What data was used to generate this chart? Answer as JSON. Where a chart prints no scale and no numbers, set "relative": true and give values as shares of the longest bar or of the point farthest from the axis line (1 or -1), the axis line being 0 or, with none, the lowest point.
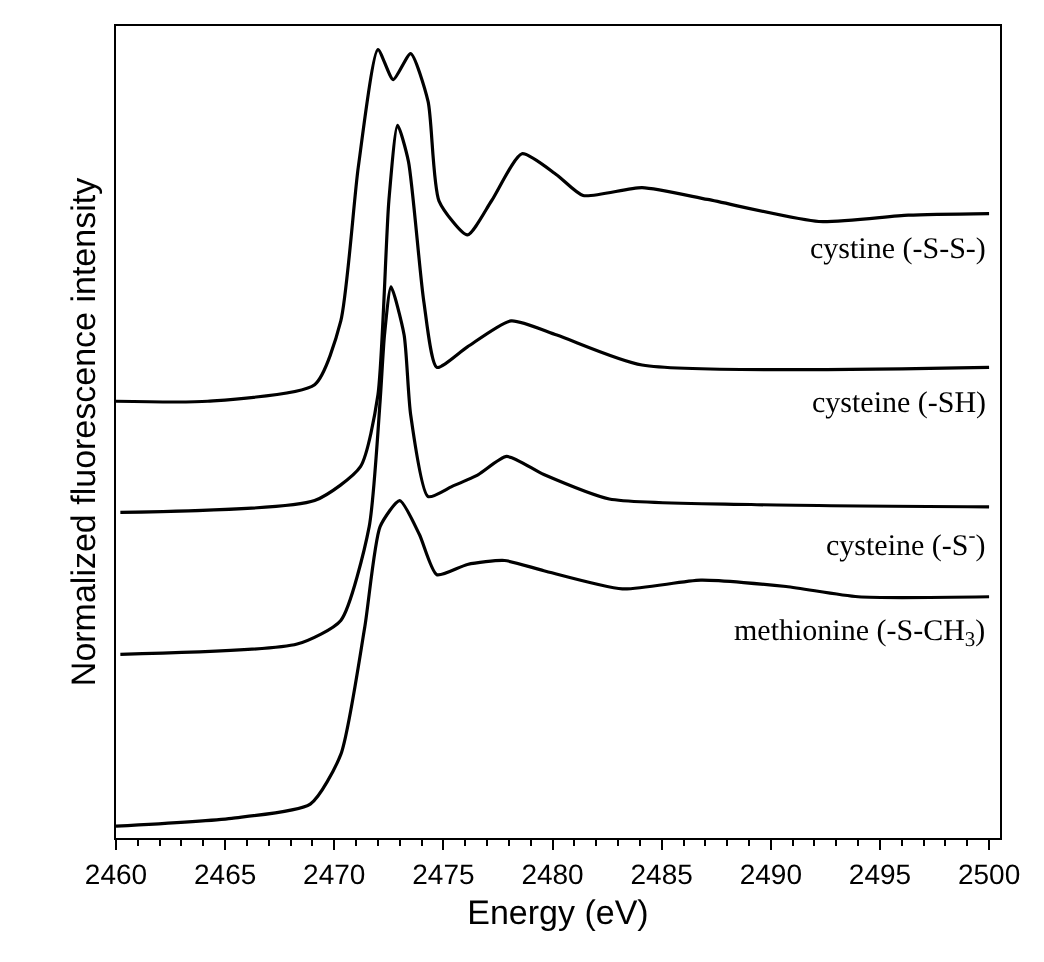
{
  "chart_data": {
    "type": "line",
    "relative": true,
    "xlabel": "Energy (eV)",
    "ylabel": "Normalized fluorescence intensity",
    "xlim": [
      2460,
      2500.5
    ],
    "xticks": [
      2460,
      2465,
      2470,
      2475,
      2480,
      2485,
      2490,
      2495,
      2500
    ],
    "legend": false,
    "marker": "none",
    "line_style": "solid",
    "series": [
      {
        "name": "cystine (-S-S-)",
        "color": "#000000",
        "x": [
          2460.0,
          2464.2,
          2469.1,
          2470.3,
          2471.1,
          2472.0,
          2472.7,
          2473.5,
          2474.3,
          2474.8,
          2476.1,
          2477.2,
          2478.6,
          2480.2,
          2481.4,
          2484.1,
          2487.1,
          2492.2,
          2496.3,
          2500
        ],
        "values": [
          0.554,
          0.554,
          0.575,
          0.656,
          0.851,
          1.0,
          0.962,
          0.995,
          0.934,
          0.808,
          0.765,
          0.808,
          0.868,
          0.841,
          0.815,
          0.825,
          0.81,
          0.782,
          0.79,
          0.792
        ]
      },
      {
        "name": "cysteine (-SH)",
        "color": "#000000",
        "x": [
          2460.2,
          2469.1,
          2471.2,
          2472.0,
          2472.5,
          2472.9,
          2473.4,
          2474.1,
          2474.7,
          2476.1,
          2478.1,
          2480.2,
          2484.1,
          2500
        ],
        "values": [
          0.413,
          0.428,
          0.471,
          0.562,
          0.808,
          0.904,
          0.858,
          0.681,
          0.597,
          0.623,
          0.656,
          0.638,
          0.6,
          0.597
        ]
      },
      {
        "name": "cysteine (-S$^{-}$)",
        "color": "#000000",
        "x": [
          2460.2,
          2468.3,
          2470.3,
          2471.6,
          2472.1,
          2472.3,
          2472.6,
          2473.2,
          2473.5,
          2474.3,
          2475.4,
          2476.6,
          2477.9,
          2479.6,
          2482.6,
          2489.1,
          2500
        ],
        "values": [
          0.233,
          0.246,
          0.276,
          0.395,
          0.554,
          0.638,
          0.699,
          0.638,
          0.537,
          0.433,
          0.446,
          0.461,
          0.484,
          0.461,
          0.43,
          0.423,
          0.42
        ]
      },
      {
        "name": "methionine (-S-CH$_{3}$)",
        "color": "#000000",
        "x": [
          2460.0,
          2465.3,
          2468.9,
          2470.3,
          2471.4,
          2472.1,
          2473.0,
          2473.9,
          2474.7,
          2476.1,
          2477.8,
          2479.6,
          2483.2,
          2486.8,
          2490.7,
          2494.0,
          2500
        ],
        "values": [
          0.015,
          0.025,
          0.043,
          0.106,
          0.268,
          0.395,
          0.428,
          0.385,
          0.334,
          0.347,
          0.352,
          0.339,
          0.316,
          0.327,
          0.319,
          0.306,
          0.306
        ]
      }
    ]
  }
}
